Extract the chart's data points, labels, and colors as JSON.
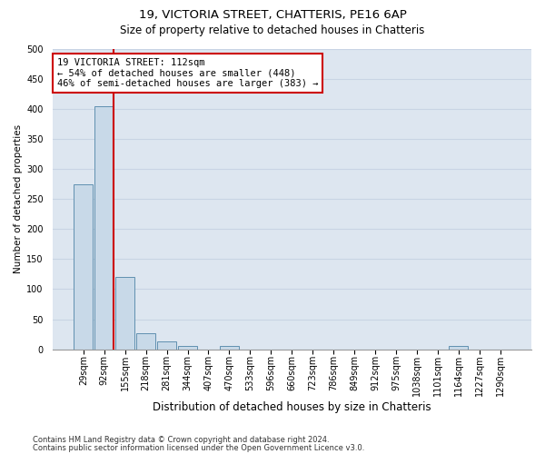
{
  "title1": "19, VICTORIA STREET, CHATTERIS, PE16 6AP",
  "title2": "Size of property relative to detached houses in Chatteris",
  "xlabel": "Distribution of detached houses by size in Chatteris",
  "ylabel": "Number of detached properties",
  "categories": [
    "29sqm",
    "92sqm",
    "155sqm",
    "218sqm",
    "281sqm",
    "344sqm",
    "407sqm",
    "470sqm",
    "533sqm",
    "596sqm",
    "660sqm",
    "723sqm",
    "786sqm",
    "849sqm",
    "912sqm",
    "975sqm",
    "1038sqm",
    "1101sqm",
    "1164sqm",
    "1227sqm",
    "1290sqm"
  ],
  "values": [
    275,
    405,
    120,
    27,
    13,
    5,
    0,
    5,
    0,
    0,
    0,
    0,
    0,
    0,
    0,
    0,
    0,
    0,
    5,
    0,
    0
  ],
  "bar_color": "#c8d9e8",
  "bar_edge_color": "#6090b0",
  "annotation_text": "19 VICTORIA STREET: 112sqm\n← 54% of detached houses are smaller (448)\n46% of semi-detached houses are larger (383) →",
  "annotation_box_color": "#ffffff",
  "annotation_box_edge": "#cc0000",
  "vline_color": "#cc0000",
  "footer1": "Contains HM Land Registry data © Crown copyright and database right 2024.",
  "footer2": "Contains public sector information licensed under the Open Government Licence v3.0.",
  "ylim": [
    0,
    500
  ],
  "yticks": [
    0,
    50,
    100,
    150,
    200,
    250,
    300,
    350,
    400,
    450,
    500
  ],
  "grid_color": "#c8d4e4",
  "bg_color": "#dde6f0",
  "title1_fontsize": 9.5,
  "title2_fontsize": 8.5,
  "xlabel_fontsize": 8.5,
  "ylabel_fontsize": 7.5,
  "tick_fontsize": 7,
  "footer_fontsize": 6,
  "annotation_fontsize": 7.5
}
